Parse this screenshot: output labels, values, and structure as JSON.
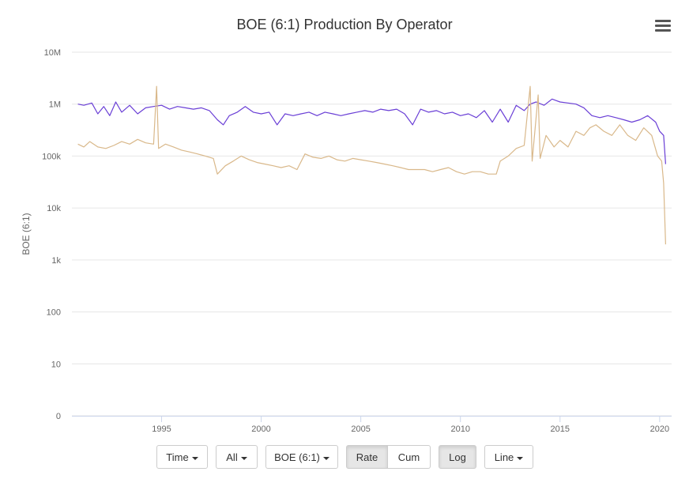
{
  "chart_data": {
    "type": "line",
    "title": "BOE (6:1) Production By Operator",
    "ylabel": "BOE (6:1)",
    "xlabel": "",
    "yscale": "log",
    "ylim": [
      1,
      10000000
    ],
    "xlim": [
      1990.5,
      2020.6
    ],
    "yticks": [
      {
        "value": 10000000,
        "label": "10M"
      },
      {
        "value": 1000000,
        "label": "1M"
      },
      {
        "value": 100000,
        "label": "100k"
      },
      {
        "value": 10000,
        "label": "10k"
      },
      {
        "value": 1000,
        "label": "1k"
      },
      {
        "value": 100,
        "label": "100"
      },
      {
        "value": 10,
        "label": "10"
      },
      {
        "value": 1,
        "label": "0"
      }
    ],
    "xticks": [
      1995,
      2000,
      2005,
      2010,
      2015,
      2020
    ],
    "grid": true,
    "legend": "none",
    "series": [
      {
        "color": "#6a3fd6",
        "points": [
          [
            1990.8,
            1000000
          ],
          [
            1991.1,
            950000
          ],
          [
            1991.5,
            1050000
          ],
          [
            1991.8,
            650000
          ],
          [
            1992.1,
            900000
          ],
          [
            1992.4,
            600000
          ],
          [
            1992.7,
            1100000
          ],
          [
            1993.0,
            700000
          ],
          [
            1993.4,
            950000
          ],
          [
            1993.8,
            650000
          ],
          [
            1994.2,
            850000
          ],
          [
            1994.6,
            900000
          ],
          [
            1995.0,
            950000
          ],
          [
            1995.4,
            800000
          ],
          [
            1995.8,
            900000
          ],
          [
            1996.2,
            850000
          ],
          [
            1996.6,
            800000
          ],
          [
            1997.0,
            850000
          ],
          [
            1997.4,
            750000
          ],
          [
            1997.8,
            500000
          ],
          [
            1998.1,
            400000
          ],
          [
            1998.4,
            600000
          ],
          [
            1998.8,
            700000
          ],
          [
            1999.2,
            900000
          ],
          [
            1999.6,
            700000
          ],
          [
            2000.0,
            650000
          ],
          [
            2000.4,
            700000
          ],
          [
            2000.8,
            400000
          ],
          [
            2001.2,
            650000
          ],
          [
            2001.6,
            600000
          ],
          [
            2002.0,
            650000
          ],
          [
            2002.4,
            700000
          ],
          [
            2002.8,
            600000
          ],
          [
            2003.2,
            700000
          ],
          [
            2003.6,
            650000
          ],
          [
            2004.0,
            600000
          ],
          [
            2004.4,
            650000
          ],
          [
            2004.8,
            700000
          ],
          [
            2005.2,
            750000
          ],
          [
            2005.6,
            700000
          ],
          [
            2006.0,
            800000
          ],
          [
            2006.4,
            750000
          ],
          [
            2006.8,
            800000
          ],
          [
            2007.2,
            650000
          ],
          [
            2007.6,
            400000
          ],
          [
            2008.0,
            800000
          ],
          [
            2008.4,
            700000
          ],
          [
            2008.8,
            750000
          ],
          [
            2009.2,
            650000
          ],
          [
            2009.6,
            700000
          ],
          [
            2010.0,
            600000
          ],
          [
            2010.4,
            650000
          ],
          [
            2010.8,
            550000
          ],
          [
            2011.2,
            750000
          ],
          [
            2011.6,
            450000
          ],
          [
            2012.0,
            800000
          ],
          [
            2012.4,
            450000
          ],
          [
            2012.8,
            950000
          ],
          [
            2013.2,
            750000
          ],
          [
            2013.5,
            1000000
          ],
          [
            2013.8,
            1100000
          ],
          [
            2014.2,
            950000
          ],
          [
            2014.6,
            1250000
          ],
          [
            2015.0,
            1100000
          ],
          [
            2015.4,
            1050000
          ],
          [
            2015.8,
            1000000
          ],
          [
            2016.2,
            850000
          ],
          [
            2016.6,
            600000
          ],
          [
            2017.0,
            550000
          ],
          [
            2017.4,
            600000
          ],
          [
            2017.8,
            550000
          ],
          [
            2018.2,
            500000
          ],
          [
            2018.6,
            450000
          ],
          [
            2019.0,
            500000
          ],
          [
            2019.4,
            600000
          ],
          [
            2019.8,
            450000
          ],
          [
            2020.0,
            300000
          ],
          [
            2020.2,
            250000
          ],
          [
            2020.3,
            70000
          ]
        ]
      },
      {
        "color": "#d9b88a",
        "points": [
          [
            1990.8,
            170000
          ],
          [
            1991.1,
            150000
          ],
          [
            1991.4,
            190000
          ],
          [
            1991.8,
            150000
          ],
          [
            1992.2,
            140000
          ],
          [
            1992.6,
            160000
          ],
          [
            1993.0,
            190000
          ],
          [
            1993.4,
            170000
          ],
          [
            1993.8,
            210000
          ],
          [
            1994.2,
            180000
          ],
          [
            1994.6,
            170000
          ],
          [
            1994.75,
            2200000
          ],
          [
            1994.85,
            140000
          ],
          [
            1995.2,
            170000
          ],
          [
            1995.6,
            150000
          ],
          [
            1996.0,
            130000
          ],
          [
            1996.4,
            120000
          ],
          [
            1996.8,
            110000
          ],
          [
            1997.2,
            100000
          ],
          [
            1997.6,
            90000
          ],
          [
            1997.8,
            45000
          ],
          [
            1998.2,
            65000
          ],
          [
            1998.6,
            80000
          ],
          [
            1999.0,
            100000
          ],
          [
            1999.4,
            85000
          ],
          [
            1999.8,
            75000
          ],
          [
            2000.2,
            70000
          ],
          [
            2000.6,
            65000
          ],
          [
            2001.0,
            60000
          ],
          [
            2001.4,
            65000
          ],
          [
            2001.8,
            55000
          ],
          [
            2002.2,
            110000
          ],
          [
            2002.6,
            95000
          ],
          [
            2003.0,
            90000
          ],
          [
            2003.4,
            100000
          ],
          [
            2003.8,
            85000
          ],
          [
            2004.2,
            80000
          ],
          [
            2004.6,
            90000
          ],
          [
            2005.0,
            85000
          ],
          [
            2005.4,
            80000
          ],
          [
            2005.8,
            75000
          ],
          [
            2006.2,
            70000
          ],
          [
            2006.6,
            65000
          ],
          [
            2007.0,
            60000
          ],
          [
            2007.4,
            55000
          ],
          [
            2007.8,
            55000
          ],
          [
            2008.2,
            55000
          ],
          [
            2008.6,
            50000
          ],
          [
            2009.0,
            55000
          ],
          [
            2009.4,
            60000
          ],
          [
            2009.8,
            50000
          ],
          [
            2010.2,
            45000
          ],
          [
            2010.6,
            50000
          ],
          [
            2011.0,
            50000
          ],
          [
            2011.4,
            45000
          ],
          [
            2011.8,
            45000
          ],
          [
            2012.0,
            80000
          ],
          [
            2012.4,
            100000
          ],
          [
            2012.8,
            140000
          ],
          [
            2013.2,
            160000
          ],
          [
            2013.5,
            2200000
          ],
          [
            2013.6,
            80000
          ],
          [
            2013.9,
            1500000
          ],
          [
            2014.0,
            90000
          ],
          [
            2014.3,
            250000
          ],
          [
            2014.7,
            150000
          ],
          [
            2015.0,
            200000
          ],
          [
            2015.4,
            150000
          ],
          [
            2015.8,
            300000
          ],
          [
            2016.2,
            250000
          ],
          [
            2016.5,
            350000
          ],
          [
            2016.8,
            400000
          ],
          [
            2017.2,
            300000
          ],
          [
            2017.6,
            250000
          ],
          [
            2018.0,
            400000
          ],
          [
            2018.4,
            250000
          ],
          [
            2018.8,
            200000
          ],
          [
            2019.2,
            350000
          ],
          [
            2019.6,
            250000
          ],
          [
            2019.9,
            100000
          ],
          [
            2020.1,
            80000
          ],
          [
            2020.2,
            30000
          ],
          [
            2020.3,
            2000
          ]
        ]
      }
    ]
  },
  "toolbar": {
    "time_label": "Time",
    "all_label": "All",
    "boe_label": "BOE (6:1)",
    "rate_label": "Rate",
    "cum_label": "Cum",
    "log_label": "Log",
    "line_label": "Line"
  }
}
